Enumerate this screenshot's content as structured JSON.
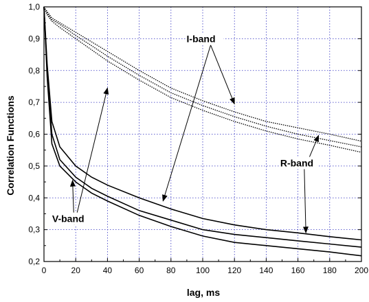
{
  "chart_data": {
    "type": "line",
    "xlabel": "lag, ms",
    "ylabel": "Correlation Functions",
    "xlim": [
      0,
      200
    ],
    "ylim": [
      0.2,
      1.0
    ],
    "x_ticks": [
      0,
      20,
      40,
      60,
      80,
      100,
      120,
      140,
      160,
      180,
      200
    ],
    "x_tick_labels": [
      "0",
      "20",
      "40",
      "60",
      "80",
      "100",
      "120",
      "140",
      "160",
      "180",
      "200"
    ],
    "y_ticks": [
      0.2,
      0.3,
      0.4,
      0.5,
      0.6,
      0.7,
      0.8,
      0.9,
      1.0
    ],
    "y_tick_labels": [
      "0,2",
      "0,3",
      "0,4",
      "0,5",
      "0,6",
      "0,7",
      "0,8",
      "0,9",
      "1,0"
    ],
    "grid": true,
    "x": [
      0,
      2,
      5,
      10,
      20,
      30,
      40,
      60,
      80,
      100,
      120,
      140,
      160,
      180,
      200
    ],
    "series": [
      {
        "style": "solid",
        "values": [
          1.0,
          0.82,
          0.64,
          0.56,
          0.5,
          0.465,
          0.44,
          0.4,
          0.365,
          0.335,
          0.315,
          0.3,
          0.29,
          0.278,
          0.268
        ]
      },
      {
        "style": "solid",
        "values": [
          1.0,
          0.8,
          0.6,
          0.52,
          0.465,
          0.43,
          0.405,
          0.36,
          0.33,
          0.3,
          0.285,
          0.275,
          0.265,
          0.255,
          0.245
        ]
      },
      {
        "style": "solid",
        "values": [
          1.0,
          0.78,
          0.57,
          0.5,
          0.45,
          0.415,
          0.39,
          0.345,
          0.31,
          0.28,
          0.26,
          0.25,
          0.24,
          0.23,
          0.218
        ]
      },
      {
        "style": "dotted",
        "values": [
          1.0,
          0.985,
          0.965,
          0.95,
          0.92,
          0.89,
          0.86,
          0.8,
          0.745,
          0.705,
          0.67,
          0.64,
          0.62,
          0.6,
          0.578
        ]
      },
      {
        "style": "dotted",
        "values": [
          1.0,
          0.98,
          0.96,
          0.945,
          0.91,
          0.878,
          0.845,
          0.785,
          0.73,
          0.69,
          0.655,
          0.625,
          0.6,
          0.58,
          0.56
        ]
      },
      {
        "style": "dotted",
        "values": [
          1.0,
          0.975,
          0.955,
          0.935,
          0.9,
          0.865,
          0.83,
          0.77,
          0.715,
          0.675,
          0.64,
          0.61,
          0.585,
          0.565,
          0.543
        ]
      }
    ],
    "annotations": [
      {
        "text": "I-band",
        "at": [
          105,
          0.88
        ],
        "arrows_to": [
          [
            120,
            0.695
          ],
          [
            75,
            0.39
          ]
        ]
      },
      {
        "text": "R-band",
        "at": [
          164,
          0.49
        ],
        "arrows_to": [
          [
            173,
            0.596
          ],
          [
            165,
            0.29
          ]
        ]
      },
      {
        "text": "V-band",
        "at": [
          19,
          0.315
        ],
        "arrows_to": [
          [
            18,
            0.455
          ],
          [
            40,
            0.745
          ]
        ]
      }
    ]
  }
}
